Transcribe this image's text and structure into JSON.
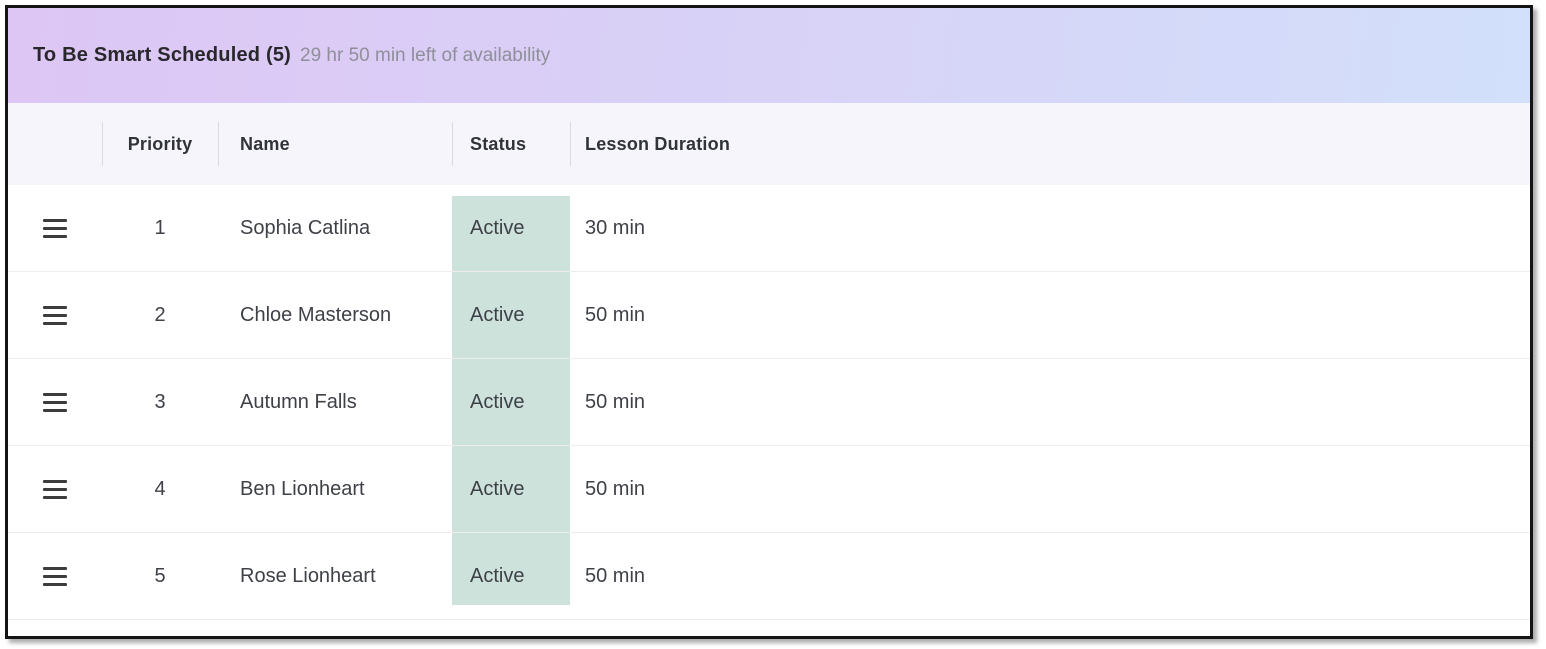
{
  "panel": {
    "title": "To Be Smart Scheduled (5)",
    "subtitle": "29 hr 50 min left of availability"
  },
  "table": {
    "headers": [
      "Priority",
      "Name",
      "Status",
      "Lesson Duration"
    ],
    "rows": [
      {
        "priority": "1",
        "name": "Sophia Catlina",
        "status": "Active",
        "duration": "30 min"
      },
      {
        "priority": "2",
        "name": "Chloe Masterson",
        "status": "Active",
        "duration": "50 min"
      },
      {
        "priority": "3",
        "name": "Autumn Falls",
        "status": "Active",
        "duration": "50 min"
      },
      {
        "priority": "4",
        "name": "Ben Lionheart",
        "status": "Active",
        "duration": "50 min"
      },
      {
        "priority": "5",
        "name": "Rose Lionheart",
        "status": "Active",
        "duration": "50 min"
      }
    ]
  },
  "icons": {
    "drag_handle": "drag-handle-icon"
  },
  "colors": {
    "header_gradient_start": "#ddc6f4",
    "header_gradient_end": "#d2e0fb",
    "table_header_bg": "#f6f5fc",
    "status_band": "#cde2db",
    "row_divider": "#eeedf4",
    "title_text": "#28282c",
    "subtitle_text": "#8f8f99",
    "cell_text": "#3e4147",
    "border": "#141414"
  }
}
